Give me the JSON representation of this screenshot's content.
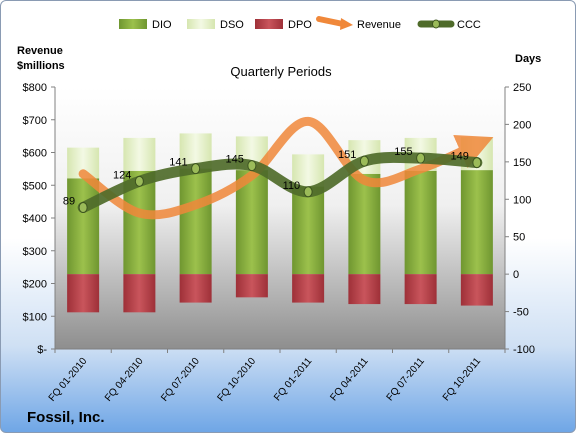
{
  "chart_data": {
    "type": "bar",
    "title": "Quarterly Periods",
    "company": "Fossil, Inc.",
    "ylabel_left_line1": "Revenue",
    "ylabel_left_line2": "$millions",
    "ylabel_right": "Days",
    "categories": [
      "FQ 01-2010",
      "FQ 04-2010",
      "FQ 07-2010",
      "FQ 10-2010",
      "FQ 01-2011",
      "FQ 04-2011",
      "FQ 07-2011",
      "FQ 10-2011"
    ],
    "yticks_left": [
      "$800",
      "$700",
      "$600",
      "$500",
      "$400",
      "$300",
      "$200",
      "$100",
      "$-"
    ],
    "yticks_right": [
      "250",
      "200",
      "150",
      "100",
      "50",
      "0",
      "-50",
      "-100"
    ],
    "ylim_left": [
      0,
      800
    ],
    "ylim_right": [
      -100,
      250
    ],
    "legend": [
      "DIO",
      "DSO",
      "DPO",
      "Revenue",
      "CCC"
    ],
    "legend_position": "top",
    "series": [
      {
        "name": "DIO",
        "axis": "right",
        "values": [
          128,
          138,
          141,
          139,
          117,
          134,
          138,
          139
        ]
      },
      {
        "name": "DSO",
        "axis": "right",
        "values": [
          41,
          44,
          47,
          45,
          43,
          45,
          44,
          44
        ]
      },
      {
        "name": "DPO",
        "axis": "right",
        "values": [
          -51,
          -51,
          -38,
          -31,
          -38,
          -40,
          -40,
          -42
        ]
      },
      {
        "name": "Revenue",
        "axis": "left",
        "values": [
          535,
          415,
          440,
          530,
          695,
          515,
          550,
          625
        ]
      },
      {
        "name": "CCC",
        "axis": "right",
        "values": [
          89,
          124,
          141,
          145,
          110,
          151,
          155,
          149
        ]
      }
    ],
    "ccc_labels": [
      "89",
      "124",
      "141",
      "145",
      "110",
      "151",
      "155",
      "149"
    ],
    "colors": {
      "DIO": "#7fa33a",
      "DSO": "#e3efc6",
      "DPO": "#b8434a",
      "Revenue": "#f0883a",
      "CCC": "#4f6b2a",
      "CCC_marker": "#9bbb59"
    }
  }
}
